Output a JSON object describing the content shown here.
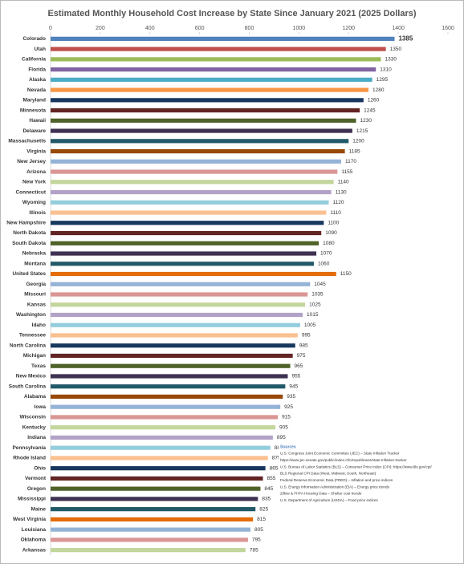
{
  "chart_data": {
    "type": "bar",
    "orientation": "horizontal",
    "title": "Estimated Monthly Household Cost Increase by State Since January 2021 (2025 Dollars)",
    "categories": [
      "Colorado",
      "Utah",
      "California",
      "Florida",
      "Alaska",
      "Nevada",
      "Maryland",
      "Minnesota",
      "Hawaii",
      "Delaware",
      "Massachusetts",
      "Virginia",
      "New Jersey",
      "Arizona",
      "New York",
      "Connecticut",
      "Wyoming",
      "Illinois",
      "New Hampshire",
      "North Dakota",
      "South Dakota",
      "Nebraska",
      "Montana",
      "United States",
      "Georgia",
      "Missouri",
      "Kansas",
      "Washington",
      "Idaho",
      "Tennessee",
      "North Carolina",
      "Michigan",
      "Texas",
      "New Mexico",
      "South Carolina",
      "Alabama",
      "Iowa",
      "Wisconsin",
      "Kentucky",
      "Indiana",
      "Pennsylvania",
      "Rhode Island",
      "Ohio",
      "Vermont",
      "Oregon",
      "Mississippi",
      "Maine",
      "West Virginia",
      "Louisiana",
      "Oklahoma",
      "Arkansas"
    ],
    "values": [
      1385,
      1350,
      1330,
      1310,
      1295,
      1280,
      1260,
      1245,
      1230,
      1215,
      1200,
      1185,
      1170,
      1155,
      1140,
      1130,
      1120,
      1110,
      1100,
      1090,
      1080,
      1070,
      1060,
      1150,
      1045,
      1035,
      1025,
      1015,
      1005,
      995,
      985,
      975,
      965,
      955,
      945,
      935,
      925,
      915,
      905,
      895,
      885,
      875,
      865,
      855,
      845,
      835,
      825,
      815,
      805,
      795,
      785
    ],
    "colors": [
      "#4f81bd",
      "#c0504d",
      "#9bbb59",
      "#8064a2",
      "#4bacc6",
      "#f79646",
      "#17375e",
      "#632523",
      "#4f6228",
      "#3f3151",
      "#215968",
      "#984807",
      "#95b3d7",
      "#d99694",
      "#c3d69b",
      "#b3a2c7",
      "#93cddd",
      "#fac090",
      "#17375e",
      "#632523",
      "#4f6228",
      "#3f3151",
      "#215968",
      "#e46c0a",
      "#95b3d7",
      "#d99694",
      "#c3d69b",
      "#b3a2c7",
      "#93cddd",
      "#fac090",
      "#17375e",
      "#632523",
      "#4f6228",
      "#3f3151",
      "#215968",
      "#984807",
      "#95b3d7",
      "#d99694",
      "#c3d69b",
      "#b3a2c7",
      "#93cddd",
      "#fac090",
      "#17375e",
      "#632523",
      "#4f6228",
      "#3f3151",
      "#215968",
      "#e46c0a",
      "#95b3d7",
      "#d99694",
      "#c3d69b"
    ],
    "xlim": [
      0,
      1600
    ],
    "xticks": [
      0,
      200,
      400,
      600,
      800,
      1000,
      1200,
      1400,
      1600
    ],
    "grid": false,
    "sources_title": "Sources",
    "sources": [
      "U.S. Congress Joint Economic Committee (JEC) – State Inflation Tracker",
      "https://www.jec.senate.gov/public/index.cfm/republicans/state-inflation-tracker",
      "U.S. Bureau of Labor Statistics (BLS) – Consumer Price Index (CPI): https://www.bls.gov/cpi/",
      "BLS Regional CPI Data (West, Midwest, South, Northeast)",
      "Federal Reserve Economic Data (FRED) – Inflation and price indices",
      "U.S. Energy Information Administration (EIA) – Energy price trends",
      "Zillow & FHFA Housing Data – Shelter cost trends",
      "U.S. Department of Agriculture (USDA) – Food price indices"
    ]
  }
}
